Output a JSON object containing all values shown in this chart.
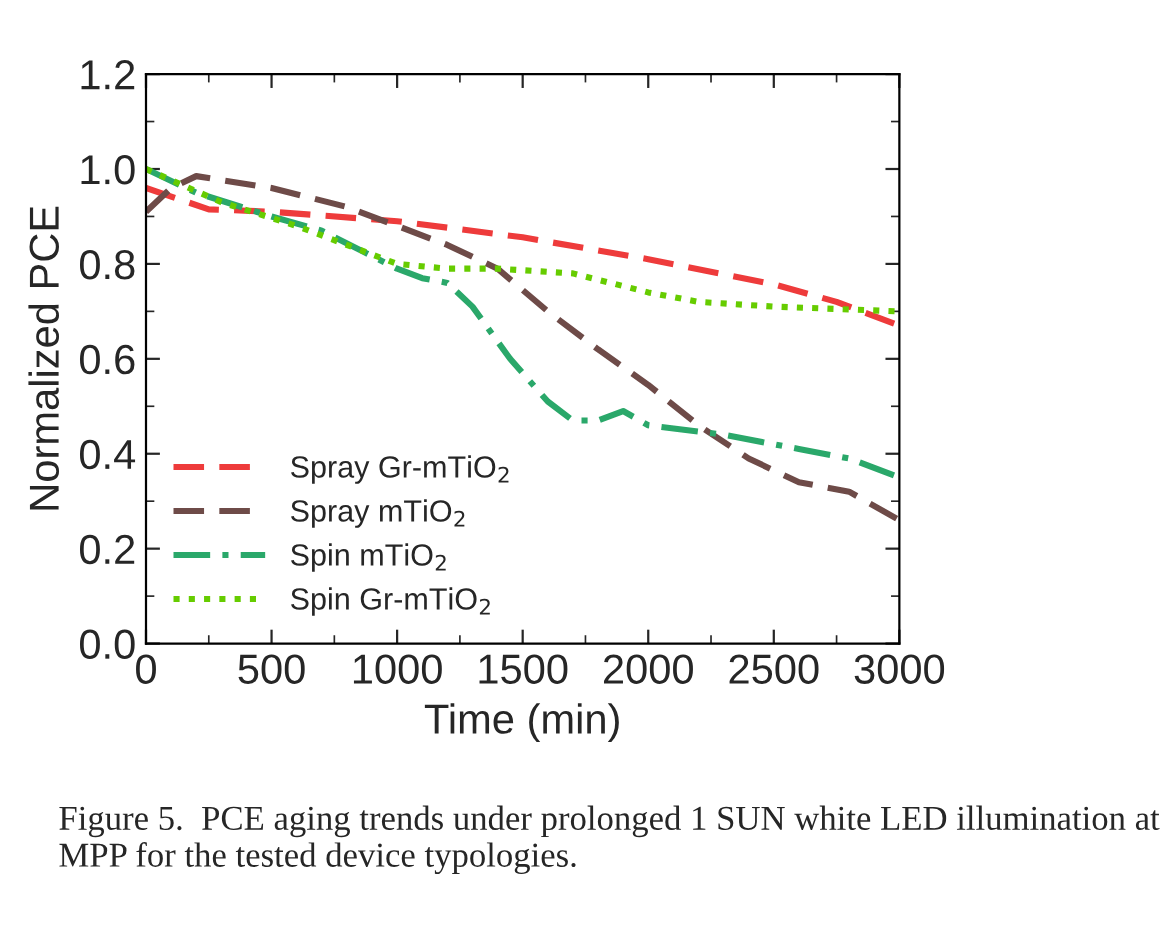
{
  "chart_data": {
    "type": "line",
    "xlabel": "Time (min)",
    "ylabel": "Normalized PCE",
    "xlim": [
      0,
      3000
    ],
    "xticks": [
      0,
      500,
      1000,
      1500,
      2000,
      2500,
      3000
    ],
    "ylim": [
      0.0,
      1.2
    ],
    "yticks": [
      {
        "value": 0.0,
        "label": "0.0"
      },
      {
        "value": 0.2,
        "label": "0.2"
      },
      {
        "value": 0.4,
        "label": "0.4"
      },
      {
        "value": 0.6,
        "label": "0.6"
      },
      {
        "value": 0.8,
        "label": "0.8"
      },
      {
        "value": 1.0,
        "label": "1.0"
      },
      {
        "value": 1.2,
        "label": "1.2"
      }
    ],
    "grid": false,
    "legend": "bottom left",
    "marker": "none",
    "series": [
      {
        "name": "Spray Gr-mTiO$_{2}$",
        "color": "#ee3b3b",
        "line_style": "dashed",
        "x": [
          0,
          250,
          500,
          1000,
          1500,
          2000,
          2500,
          2750,
          3000
        ],
        "values": [
          0.96,
          0.915,
          0.91,
          0.89,
          0.856,
          0.81,
          0.757,
          0.72,
          0.67
        ]
      },
      {
        "name": "Spray mTiO$_{2}$",
        "color": "#6e4b48",
        "line_style": "dashed",
        "x": [
          0,
          100,
          200,
          500,
          800,
          1000,
          1200,
          1400,
          1600,
          1800,
          2000,
          2200,
          2400,
          2600,
          2800,
          3000
        ],
        "values": [
          0.91,
          0.96,
          0.985,
          0.96,
          0.92,
          0.88,
          0.84,
          0.79,
          0.7,
          0.62,
          0.545,
          0.46,
          0.39,
          0.34,
          0.32,
          0.26
        ]
      },
      {
        "name": "Spin mTiO$_{2}$",
        "color": "#2aa86a",
        "line_style": "dashdot",
        "x": [
          0,
          200,
          500,
          700,
          1000,
          1100,
          1200,
          1300,
          1450,
          1600,
          1700,
          1800,
          1900,
          2000,
          2300,
          2600,
          2800,
          3000
        ],
        "values": [
          1.0,
          0.95,
          0.9,
          0.87,
          0.79,
          0.77,
          0.76,
          0.71,
          0.6,
          0.51,
          0.47,
          0.47,
          0.49,
          0.46,
          0.44,
          0.41,
          0.39,
          0.35
        ]
      },
      {
        "name": "Spin Gr-mTiO$_{2}$",
        "color": "#66cc00",
        "line_style": "dotted",
        "x": [
          0,
          300,
          600,
          1000,
          1200,
          1400,
          1700,
          2000,
          2200,
          2500,
          3000
        ],
        "values": [
          1.0,
          0.93,
          0.88,
          0.8,
          0.79,
          0.79,
          0.78,
          0.74,
          0.72,
          0.71,
          0.7
        ]
      }
    ],
    "annotations": [
      "Figure 5.  PCE aging trends under prolonged 1 SUN white LED illumination at MPP for the tested device typologies."
    ]
  }
}
